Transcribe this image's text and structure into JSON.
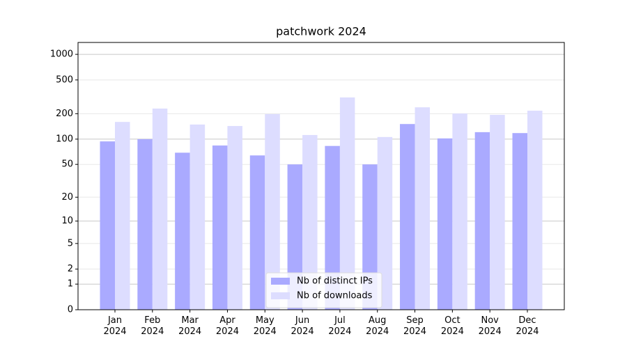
{
  "chart_data": {
    "type": "bar",
    "title": "patchwork 2024",
    "categories": [
      "Jan\n2024",
      "Feb\n2024",
      "Mar\n2024",
      "Apr\n2024",
      "May\n2024",
      "Jun\n2024",
      "Jul\n2024",
      "Aug\n2024",
      "Sep\n2024",
      "Oct\n2024",
      "Nov\n2024",
      "Dec\n2024"
    ],
    "series": [
      {
        "name": "Nb of distinct IPs",
        "color": "#aaaaff",
        "values": [
          94,
          100,
          69,
          84,
          64,
          50,
          83,
          50,
          151,
          102,
          121,
          118
        ]
      },
      {
        "name": "Nb of downloads",
        "color": "#ddddff",
        "values": [
          160,
          230,
          149,
          143,
          198,
          112,
          311,
          106,
          238,
          201,
          194,
          217
        ]
      }
    ],
    "yscale": "log1p",
    "ylim": [
      0,
      1380
    ],
    "yticks": [
      0,
      1,
      2,
      5,
      10,
      20,
      50,
      100,
      200,
      500,
      1000
    ],
    "grid": true,
    "legend": "lower center"
  }
}
